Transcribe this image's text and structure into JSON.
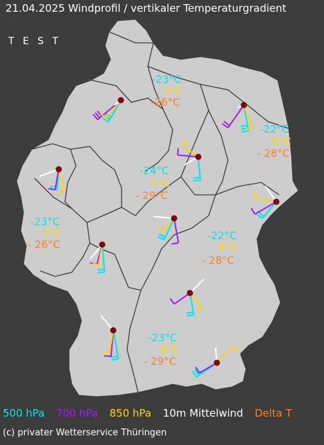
{
  "header": {
    "title": "21.04.2025 Windprofil / vertikaler Temperaturgradient",
    "subtitle": "T E S T"
  },
  "colors": {
    "background": "#3c3c3c",
    "land": "#cdcdcd",
    "border": "#3c3c3c",
    "station": "#7a0a0a",
    "hpa500": "#00e5ee",
    "hpa700": "#a020f0",
    "hpa850": "#ffd700",
    "wind10m": "#ffffff",
    "delta": "#ff7f24"
  },
  "legend": {
    "hpa500": "500 hPa",
    "hpa700": "700 hPa",
    "hpa850": "850 hPa",
    "wind10m": "10m Mittelwind",
    "delta": "Delta T"
  },
  "footer": {
    "credit": "(c) privater Wetterservice Thüringen"
  },
  "temperature_labels": [
    {
      "t500": "-23°C",
      "t850": "3°C",
      "delta": "-26°C"
    },
    {
      "t500": "-22°C",
      "t850": "6°C",
      "delta": "- 28°C"
    },
    {
      "t500": "-24°C",
      "t850": "5°C",
      "delta": "- 29°C"
    },
    {
      "t500": "-23°C",
      "t850": "3°C",
      "delta": "- 26°C"
    },
    {
      "t500": "-22°C",
      "t850": "6°C",
      "delta": "- 28°C"
    },
    {
      "t500": "-23°C",
      "t850": "6°C",
      "delta": "- 29°C"
    }
  ]
}
